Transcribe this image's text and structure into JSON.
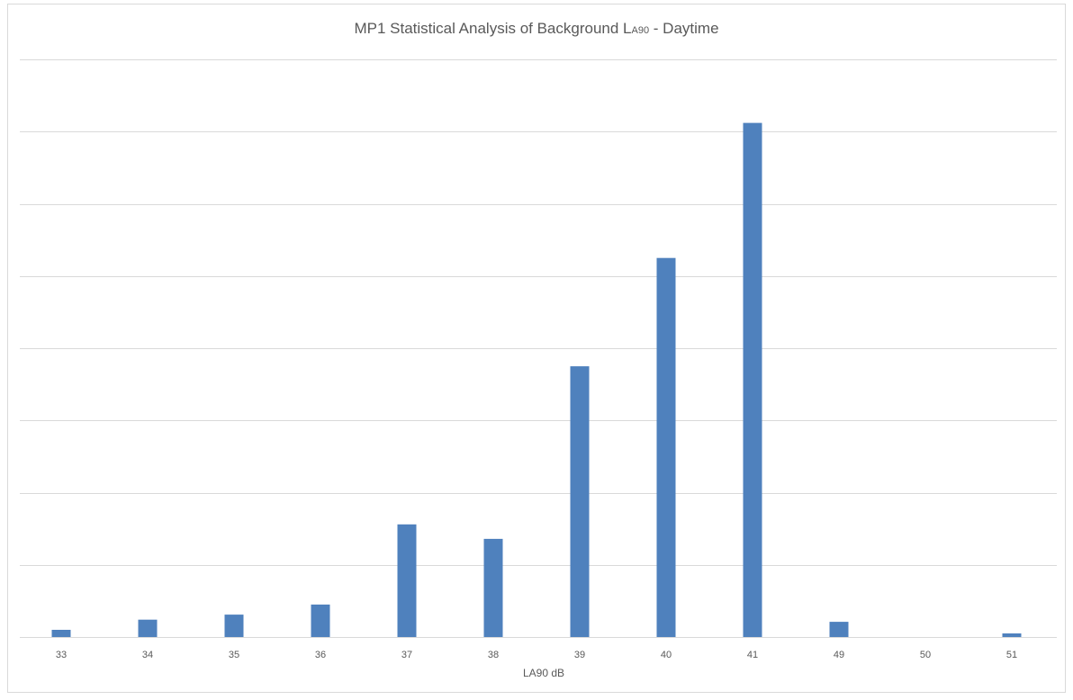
{
  "chart_data": {
    "type": "bar",
    "title_main": "MP1 Statistical Analysis of Background L",
    "title_sub": "A90",
    "title_tail": " - Daytime",
    "xlabel": "LA90 dB",
    "ylabel": "",
    "categories": [
      "33",
      "34",
      "35",
      "36",
      "37",
      "38",
      "39",
      "40",
      "41",
      "49",
      "50",
      "51"
    ],
    "values": [
      1,
      2.4,
      3.1,
      4.5,
      15.6,
      13.6,
      37.5,
      52.5,
      71.2,
      2.1,
      0,
      0.5
    ],
    "ylim": [
      0,
      80
    ],
    "gridlines": 8,
    "y_tick_labels_shown": false,
    "bar_color": "#4f81bd",
    "grid_color": "#d9d9d9"
  }
}
